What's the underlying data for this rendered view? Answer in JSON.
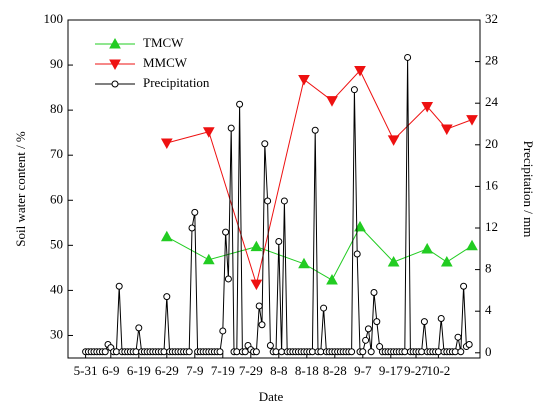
{
  "chart_data": {
    "type": "line",
    "xlabel": "Date",
    "ylabel": "Soil water content / %",
    "y2label": "Precipitation / mm",
    "categories": [
      null,
      null,
      "5-31",
      null,
      null,
      null,
      null,
      null,
      null,
      null,
      null,
      "6-9",
      null,
      null,
      null,
      null,
      null,
      null,
      null,
      null,
      null,
      "6-19",
      null,
      null,
      null,
      null,
      null,
      null,
      null,
      null,
      null,
      "6-29",
      null,
      null,
      null,
      null,
      null,
      null,
      null,
      null,
      null,
      "7-9",
      null,
      null,
      null,
      null,
      null,
      null,
      null,
      null,
      null,
      "7-19",
      null,
      null,
      null,
      null,
      null,
      null,
      null,
      null,
      null,
      "7-29",
      null,
      null,
      null,
      null,
      null,
      null,
      null,
      null,
      null,
      "8-8",
      null,
      null,
      null,
      null,
      null,
      null,
      null,
      null,
      null,
      "8-18",
      null,
      null,
      null,
      null,
      null,
      null,
      null,
      null,
      null,
      "8-28",
      null,
      null,
      null,
      null,
      null,
      null,
      null,
      null,
      null,
      "9-7",
      null,
      null,
      null,
      null,
      null,
      null,
      null,
      null,
      null,
      "9-17",
      null,
      null,
      null,
      null,
      null,
      null,
      null,
      null,
      "9-27",
      null,
      null,
      null,
      null,
      null,
      null,
      null,
      "10-2",
      null,
      null,
      null,
      null,
      null,
      null,
      null,
      null,
      null,
      null,
      null,
      null
    ],
    "series": [
      {
        "name": "TMCW",
        "color": "#22cc22",
        "marker": "triangle-up",
        "values": [
          null,
          null,
          null,
          null,
          null,
          null,
          null,
          null,
          null,
          null,
          null,
          null,
          null,
          null,
          null,
          null,
          null,
          null,
          null,
          null,
          null,
          null,
          null,
          null,
          null,
          null,
          null,
          null,
          null,
          null,
          null,
          51.9,
          null,
          null,
          null,
          null,
          null,
          null,
          null,
          null,
          null,
          null,
          null,
          null,
          null,
          null,
          46.8,
          null,
          null,
          null,
          null,
          null,
          null,
          null,
          null,
          null,
          null,
          null,
          null,
          null,
          null,
          null,
          null,
          49.7,
          null,
          null,
          null,
          null,
          null,
          null,
          null,
          null,
          null,
          null,
          null,
          null,
          null,
          null,
          null,
          null,
          45.9,
          null,
          null,
          null,
          null,
          null,
          null,
          null,
          null,
          null,
          42.3,
          null,
          null,
          null,
          null,
          null,
          null,
          null,
          null,
          null,
          54.1,
          null,
          null,
          null,
          null,
          null,
          null,
          null,
          null,
          null,
          null,
          null,
          46.3,
          null,
          null,
          null,
          null,
          null,
          null,
          null,
          null,
          null,
          null,
          null,
          49.2,
          null,
          null,
          null,
          null,
          null,
          null,
          46.3,
          null,
          null,
          null,
          null,
          null,
          null,
          null,
          null,
          49.9
        ]
      },
      {
        "name": "MMCW",
        "color": "#ee1111",
        "marker": "triangle-down",
        "values": [
          null,
          null,
          null,
          null,
          null,
          null,
          null,
          null,
          null,
          null,
          null,
          null,
          null,
          null,
          null,
          null,
          null,
          null,
          null,
          null,
          null,
          null,
          null,
          null,
          null,
          null,
          null,
          null,
          null,
          null,
          null,
          72.7,
          null,
          null,
          null,
          null,
          null,
          null,
          null,
          null,
          null,
          null,
          null,
          null,
          null,
          null,
          75.2,
          null,
          null,
          null,
          null,
          null,
          null,
          null,
          null,
          null,
          null,
          null,
          null,
          null,
          null,
          null,
          null,
          41.4,
          null,
          null,
          null,
          null,
          null,
          null,
          null,
          null,
          null,
          null,
          null,
          null,
          null,
          null,
          null,
          null,
          86.8,
          null,
          null,
          null,
          null,
          null,
          null,
          null,
          null,
          null,
          82.1,
          null,
          null,
          null,
          null,
          null,
          null,
          null,
          null,
          null,
          88.8,
          null,
          null,
          null,
          null,
          null,
          null,
          null,
          null,
          null,
          null,
          null,
          73.4,
          null,
          null,
          null,
          null,
          null,
          null,
          null,
          null,
          null,
          null,
          null,
          80.8,
          null,
          null,
          null,
          null,
          null,
          null,
          75.8,
          null,
          null,
          null,
          null,
          null,
          null,
          null,
          null,
          77.9
        ]
      },
      {
        "name": "Precipitation",
        "color": "#000000",
        "marker": "circle",
        "axis": "y2",
        "values": [
          null,
          null,
          0.1,
          0.1,
          0.1,
          0.1,
          0.1,
          0.1,
          0.1,
          0.1,
          0.8,
          0.5,
          0.1,
          0.1,
          6.4,
          0.1,
          0.1,
          0.1,
          0.1,
          0.1,
          0.1,
          2.4,
          0.1,
          0.1,
          0.1,
          0.1,
          0.1,
          0.1,
          0.1,
          0.1,
          0.1,
          5.4,
          0.1,
          0.1,
          0.1,
          0.1,
          0.1,
          0.1,
          0.1,
          0.1,
          12,
          13.5,
          0.1,
          0.1,
          0.1,
          0.1,
          0.1,
          0.1,
          0.1,
          0.1,
          0.1,
          2.1,
          11.6,
          7.1,
          21.6,
          0.1,
          0.1,
          23.9,
          0.1,
          0.1,
          0.7,
          0.3,
          0.1,
          0.1,
          4.5,
          2.7,
          20.1,
          14.6,
          0.7,
          0.1,
          0.1,
          10.7,
          0.1,
          14.6,
          0.1,
          0.1,
          0.1,
          0.1,
          0.1,
          0.1,
          0.1,
          0.1,
          0.1,
          0.1,
          21.4,
          0.1,
          0.1,
          4.3,
          0.1,
          0.1,
          0.1,
          0.1,
          0.1,
          0.1,
          0.1,
          0.1,
          0.1,
          0.1,
          25.3,
          9.5,
          0.1,
          0.1,
          1.2,
          2.3,
          0.1,
          5.8,
          3,
          0.6,
          0.1,
          0.1,
          0.1,
          0.1,
          0.1,
          0.1,
          0.1,
          0.1,
          0.1,
          28.4,
          0.1,
          0.1,
          0.1,
          0.1,
          0.1,
          3,
          0.1,
          0.1,
          0.1,
          0.1,
          0.1,
          3.3,
          0.1,
          0.1,
          0.1,
          0.1,
          0.1,
          1.5,
          0.1,
          6.4,
          0.6,
          0.8,
          null
        ]
      }
    ],
    "ylim": [
      25,
      100
    ],
    "yticks": [
      30,
      40,
      50,
      60,
      70,
      80,
      90,
      100
    ],
    "y2lim": [
      -0.5,
      32
    ],
    "y2ticks": [
      0,
      4,
      8,
      12,
      16,
      20,
      24,
      28,
      32
    ],
    "legend": "upper left"
  }
}
